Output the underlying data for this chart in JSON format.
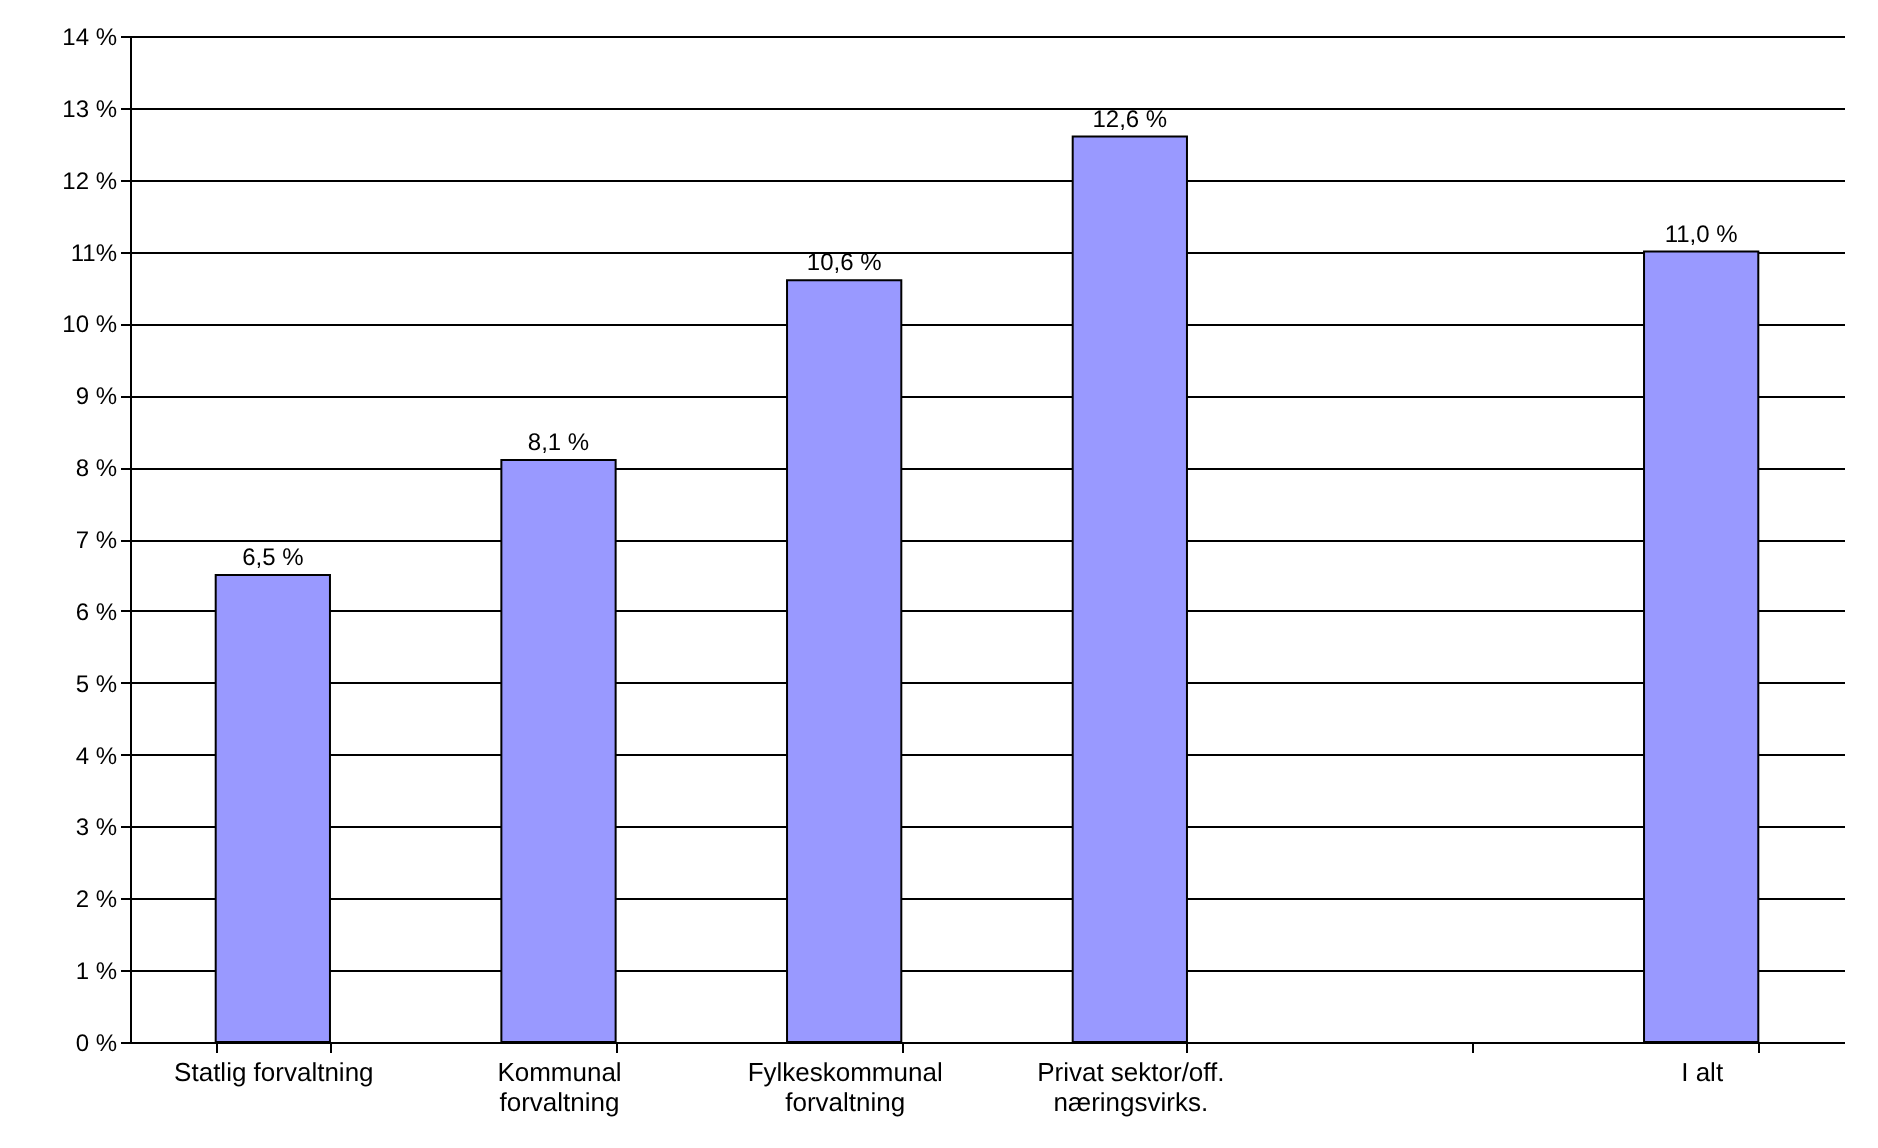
{
  "chart_data": {
    "type": "bar",
    "categories": [
      "Statlig forvaltning",
      "Kommunal forvaltning",
      "Fylkeskommunal forvaltning",
      "Privat sektor/off. næringsvirks.",
      null,
      "I alt"
    ],
    "values": [
      6.5,
      8.1,
      10.6,
      12.6,
      null,
      11.0
    ],
    "value_labels": [
      "6,5 %",
      "8,1 %",
      "10,6 %",
      "12,6 %",
      null,
      "11,0 %"
    ],
    "color": "#9999ff",
    "ylim": [
      0,
      14
    ],
    "yticks": [
      {
        "value": 0,
        "label": "0 %"
      },
      {
        "value": 1,
        "label": "1 %"
      },
      {
        "value": 2,
        "label": "2 %"
      },
      {
        "value": 3,
        "label": "3 %"
      },
      {
        "value": 4,
        "label": "4 %"
      },
      {
        "value": 5,
        "label": "5 %"
      },
      {
        "value": 6,
        "label": "6 %"
      },
      {
        "value": 7,
        "label": "7 %"
      },
      {
        "value": 8,
        "label": "8 %"
      },
      {
        "value": 9,
        "label": "9 %"
      },
      {
        "value": 10,
        "label": "10 %"
      },
      {
        "value": 11,
        "label": "11%"
      },
      {
        "value": 12,
        "label": "12 %"
      },
      {
        "value": 13,
        "label": "13 %"
      },
      {
        "value": 14,
        "label": "14 %"
      }
    ],
    "grid": "y"
  }
}
